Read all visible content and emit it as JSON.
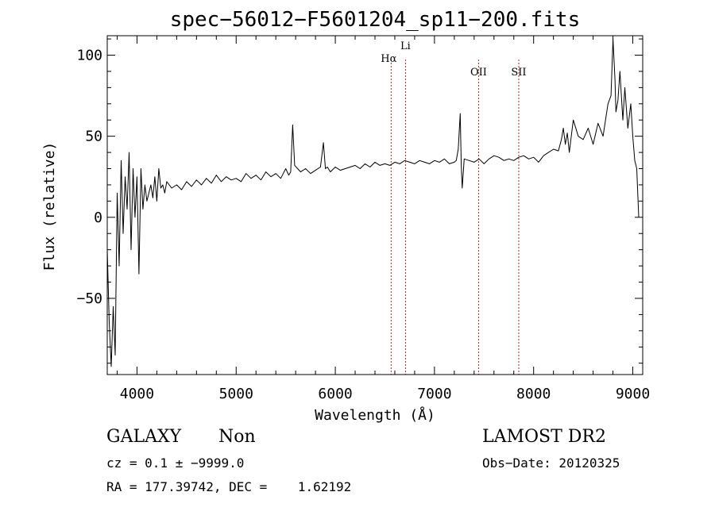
{
  "chart_data": {
    "type": "line",
    "title": "spec−56012−F5601204_sp11−200.fits",
    "xlabel": "Wavelength (Å)",
    "ylabel": "Flux (relative)",
    "xlim": [
      3700,
      9100
    ],
    "ylim": [
      -97,
      112
    ],
    "xticks": [
      4000,
      5000,
      6000,
      7000,
      8000,
      9000
    ],
    "xtick_labels": [
      "4000",
      "5000",
      "6000",
      "7000",
      "8000",
      "9000"
    ],
    "yticks": [
      -50,
      0,
      50,
      100
    ],
    "ytick_labels": [
      "−50",
      "0",
      "50",
      "100"
    ],
    "grid": false,
    "series": [
      {
        "x": [
          3700,
          3720,
          3740,
          3760,
          3780,
          3800,
          3820,
          3840,
          3860,
          3880,
          3900,
          3920,
          3940,
          3960,
          3980,
          4000,
          4020,
          4040,
          4060,
          4080,
          4100,
          4120,
          4140,
          4160,
          4180,
          4200,
          4220,
          4240,
          4260,
          4280,
          4300,
          4350,
          4400,
          4450,
          4500,
          4550,
          4600,
          4650,
          4700,
          4750,
          4800,
          4850,
          4900,
          4950,
          5000,
          5050,
          5100,
          5150,
          5200,
          5250,
          5300,
          5350,
          5400,
          5450,
          5500,
          5530,
          5550,
          5570,
          5590,
          5620,
          5650,
          5700,
          5750,
          5800,
          5850,
          5880,
          5900,
          5920,
          5950,
          6000,
          6050,
          6100,
          6150,
          6200,
          6250,
          6300,
          6350,
          6400,
          6450,
          6500,
          6550,
          6600,
          6650,
          6700,
          6750,
          6800,
          6850,
          6900,
          6950,
          7000,
          7050,
          7100,
          7150,
          7200,
          7220,
          7240,
          7260,
          7270,
          7280,
          7300,
          7350,
          7400,
          7450,
          7500,
          7550,
          7600,
          7650,
          7700,
          7750,
          7800,
          7850,
          7900,
          7950,
          8000,
          8050,
          8100,
          8150,
          8200,
          8250,
          8280,
          8300,
          8320,
          8340,
          8360,
          8400,
          8450,
          8500,
          8550,
          8600,
          8650,
          8700,
          8750,
          8780,
          8800,
          8820,
          8830,
          8850,
          8870,
          8900,
          8920,
          8950,
          8980,
          9000,
          9020,
          9040,
          9060
        ],
        "values": [
          -20,
          -65,
          -92,
          -55,
          -85,
          15,
          -30,
          35,
          -10,
          25,
          5,
          40,
          -20,
          30,
          0,
          25,
          -35,
          30,
          5,
          20,
          10,
          15,
          20,
          12,
          25,
          10,
          30,
          18,
          20,
          15,
          22,
          18,
          20,
          17,
          22,
          19,
          23,
          20,
          24,
          21,
          26,
          22,
          25,
          23,
          24,
          22,
          27,
          24,
          26,
          23,
          28,
          25,
          27,
          24,
          30,
          26,
          28,
          57,
          32,
          30,
          28,
          30,
          27,
          29,
          31,
          46,
          30,
          31,
          28,
          31,
          29,
          30,
          31,
          32,
          30,
          33,
          31,
          34,
          32,
          33,
          32,
          34,
          33,
          35,
          34,
          33,
          35,
          34,
          33,
          35,
          34,
          36,
          33,
          34,
          35,
          42,
          64,
          32,
          18,
          36,
          35,
          34,
          36,
          33,
          36,
          38,
          37,
          35,
          36,
          35,
          37,
          38,
          36,
          37,
          34,
          38,
          40,
          42,
          41,
          48,
          55,
          45,
          52,
          40,
          60,
          50,
          48,
          55,
          45,
          58,
          50,
          70,
          75,
          110,
          85,
          65,
          72,
          90,
          60,
          80,
          55,
          70,
          50,
          35,
          30,
          0
        ],
        "color": "#000000"
      }
    ],
    "line_markers": [
      {
        "label": "Hα",
        "x": 6563
      },
      {
        "label": "Li",
        "x": 6708
      },
      {
        "label": "OII",
        "x": 7445
      },
      {
        "label": "SII",
        "x": 7850
      }
    ],
    "marker_color": "#b22222"
  },
  "info": {
    "object_class": "GALAXY",
    "subclass": "Non",
    "survey": "LAMOST DR2",
    "cz_text": "cz = 0.1 ± −9999.0",
    "obs_date_text": "Obs−Date: 20120325",
    "radec_text": "RA = 177.39742, DEC =    1.62192"
  }
}
